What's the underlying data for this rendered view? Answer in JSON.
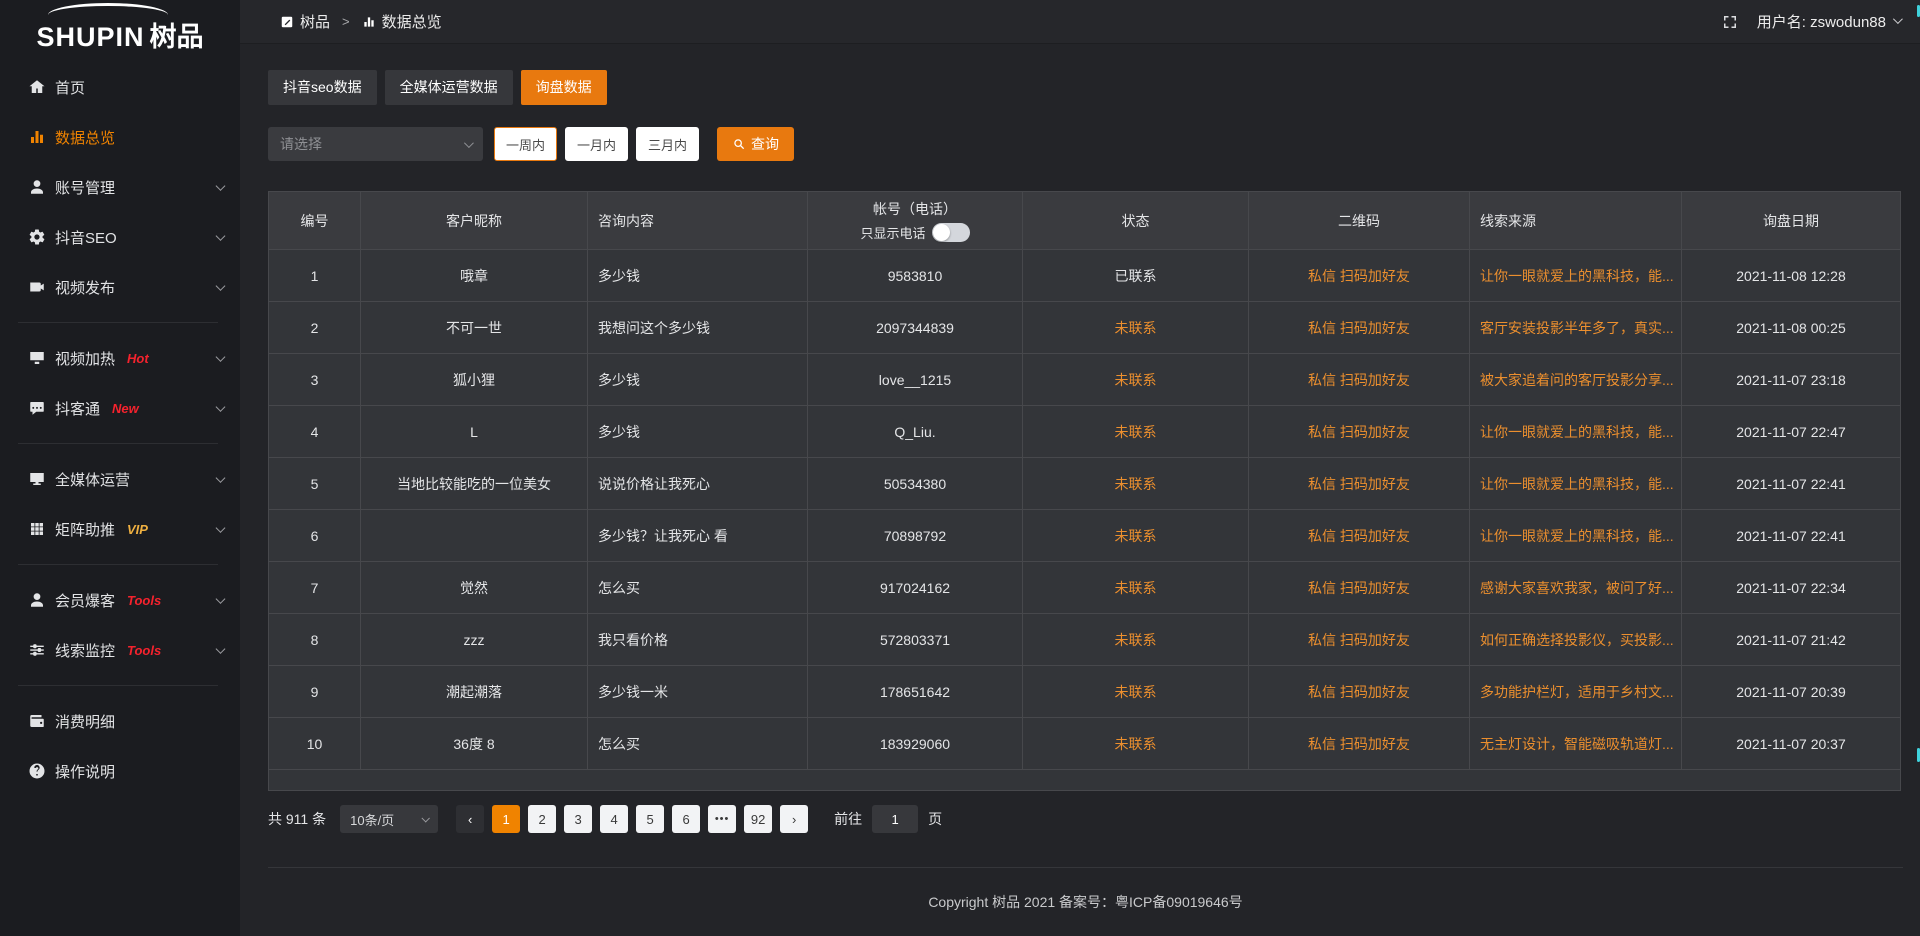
{
  "colors": {
    "accent_orange": "#e8790f",
    "pagination_active_orange": "#f08300",
    "link_orange": "#ec8f2e",
    "badge_red": "#f5222d",
    "badge_yellow": "#efb041",
    "sidebar_active_orange": "#f08300"
  },
  "app": {
    "logo_text": "SHUPIN",
    "logo_suffix": "树品"
  },
  "topbar": {
    "breadcrumb_home_icon": "square-app-icon",
    "breadcrumb_home": "树品",
    "breadcrumb_separator": ">",
    "breadcrumb_current_icon": "bar-chart-icon",
    "breadcrumb_current": "数据总览",
    "fullscreen_icon": "fullscreen-icon",
    "username": "用户名: zswodun88"
  },
  "sidebar": {
    "items": [
      {
        "id": "home",
        "icon": "home-icon",
        "label": "首页"
      },
      {
        "id": "overview",
        "icon": "bar-chart-icon",
        "label": "数据总览",
        "active": true
      },
      {
        "id": "account",
        "icon": "user-icon",
        "label": "账号管理",
        "chevron": true
      },
      {
        "id": "douyin-seo",
        "icon": "gear-icon",
        "label": "抖音SEO",
        "chevron": true
      },
      {
        "id": "video-publish",
        "icon": "video-icon",
        "label": "视频发布",
        "chevron": true
      },
      {
        "type": "divider"
      },
      {
        "id": "video-heat",
        "icon": "monitor-icon",
        "label": "视频加热",
        "badge": "Hot",
        "badge_color": "red",
        "chevron": true
      },
      {
        "id": "douketong",
        "icon": "chat-icon",
        "label": "抖客通",
        "badge": "New",
        "badge_color": "red",
        "chevron": true
      },
      {
        "type": "divider"
      },
      {
        "id": "media-ops",
        "icon": "screen-icon",
        "label": "全媒体运营",
        "chevron": true
      },
      {
        "id": "matrix-boost",
        "icon": "grid-icon",
        "label": "矩阵助推",
        "badge": "VIP",
        "badge_color": "yellow",
        "chevron": true
      },
      {
        "type": "divider"
      },
      {
        "id": "member-burst",
        "icon": "member-icon",
        "label": "会员爆客",
        "badge": "Tools",
        "badge_color": "red",
        "chevron": true
      },
      {
        "id": "clue-monitor",
        "icon": "sliders-icon",
        "label": "线索监控",
        "badge": "Tools",
        "badge_color": "red",
        "chevron": true
      },
      {
        "type": "divider"
      },
      {
        "id": "expense-detail",
        "icon": "wallet-icon",
        "label": "消费明细"
      },
      {
        "id": "help",
        "icon": "question-icon",
        "label": "操作说明"
      }
    ]
  },
  "tabs": [
    {
      "id": "douyin-seo-data",
      "label": "抖音seo数据",
      "active": false
    },
    {
      "id": "media-ops-data",
      "label": "全媒体运营数据",
      "active": false
    },
    {
      "id": "inquiry-data",
      "label": "询盘数据",
      "active": true
    }
  ],
  "filters": {
    "select_placeholder": "请选择",
    "periods": [
      {
        "id": "week",
        "label": "一周内",
        "active": true
      },
      {
        "id": "month",
        "label": "一月内",
        "active": false
      },
      {
        "id": "quarter",
        "label": "三月内",
        "active": false
      }
    ],
    "query_icon": "search-icon",
    "query_label": "查询"
  },
  "table": {
    "columns": [
      "编号",
      "客户昵称",
      "咨询内容",
      "帐号（电话）",
      "状态",
      "二维码",
      "线索来源",
      "询盘日期"
    ],
    "phone_toggle_label": "只显示电话",
    "rows": [
      {
        "no": "1",
        "nickname": "哦章",
        "content": "多少钱",
        "account": "9583810",
        "status": "已联系",
        "qr": "私信 扫码加好友",
        "source": "让你一眼就爱上的黑科技，能...",
        "date": "2021-11-08 12:28"
      },
      {
        "no": "2",
        "nickname": "不可一世",
        "content": "我想问这个多少钱",
        "account": "2097344839",
        "status": "未联系",
        "qr": "私信 扫码加好友",
        "source": "客厅安装投影半年多了，真实...",
        "date": "2021-11-08 00:25"
      },
      {
        "no": "3",
        "nickname": "狐小狸",
        "content": "多少钱",
        "account": "love__1215",
        "status": "未联系",
        "qr": "私信 扫码加好友",
        "source": "被大家追着问的客厅投影分享...",
        "date": "2021-11-07 23:18"
      },
      {
        "no": "4",
        "nickname": "L",
        "content": "多少钱",
        "account": "Q_Liu.",
        "status": "未联系",
        "qr": "私信 扫码加好友",
        "source": "让你一眼就爱上的黑科技，能...",
        "date": "2021-11-07 22:47"
      },
      {
        "no": "5",
        "nickname": "当地比较能吃的一位美女",
        "content": "说说价格让我死心",
        "account": "50534380",
        "status": "未联系",
        "qr": "私信 扫码加好友",
        "source": "让你一眼就爱上的黑科技，能...",
        "date": "2021-11-07 22:41"
      },
      {
        "no": "6",
        "nickname": "",
        "content": "多少钱？让我死心 看",
        "account": "70898792",
        "status": "未联系",
        "qr": "私信 扫码加好友",
        "source": "让你一眼就爱上的黑科技，能...",
        "date": "2021-11-07 22:41"
      },
      {
        "no": "7",
        "nickname": "觉然",
        "content": "怎么买",
        "account": "917024162",
        "status": "未联系",
        "qr": "私信 扫码加好友",
        "source": "感谢大家喜欢我家，被问了好...",
        "date": "2021-11-07 22:34"
      },
      {
        "no": "8",
        "nickname": "zzz",
        "content": "我只看价格",
        "account": "572803371",
        "status": "未联系",
        "qr": "私信 扫码加好友",
        "source": "如何正确选择投影仪，买投影...",
        "date": "2021-11-07 21:42"
      },
      {
        "no": "9",
        "nickname": "潮起潮落",
        "content": "多少钱一米",
        "account": "178651642",
        "status": "未联系",
        "qr": "私信 扫码加好友",
        "source": "多功能护栏灯，适用于乡村文...",
        "date": "2021-11-07 20:39"
      },
      {
        "no": "10",
        "nickname": "36度 8",
        "content": "怎么买",
        "account": "183929060",
        "status": "未联系",
        "qr": "私信 扫码加好友",
        "source": "无主灯设计，智能磁吸轨道灯...",
        "date": "2021-11-07 20:37"
      }
    ]
  },
  "pagination": {
    "total_label": "共 911 条",
    "page_size": "10条/页",
    "prev_icon": "chevron-left-icon",
    "next_icon": "chevron-right-icon",
    "pages": [
      "1",
      "2",
      "3",
      "4",
      "5",
      "6",
      "•••",
      "92"
    ],
    "active_page": "1",
    "goto_label": "前往",
    "goto_value": "1",
    "goto_unit": "页"
  },
  "footer": {
    "copyright": "Copyright 树品 2021 备案号：粤ICP备09019646号"
  }
}
